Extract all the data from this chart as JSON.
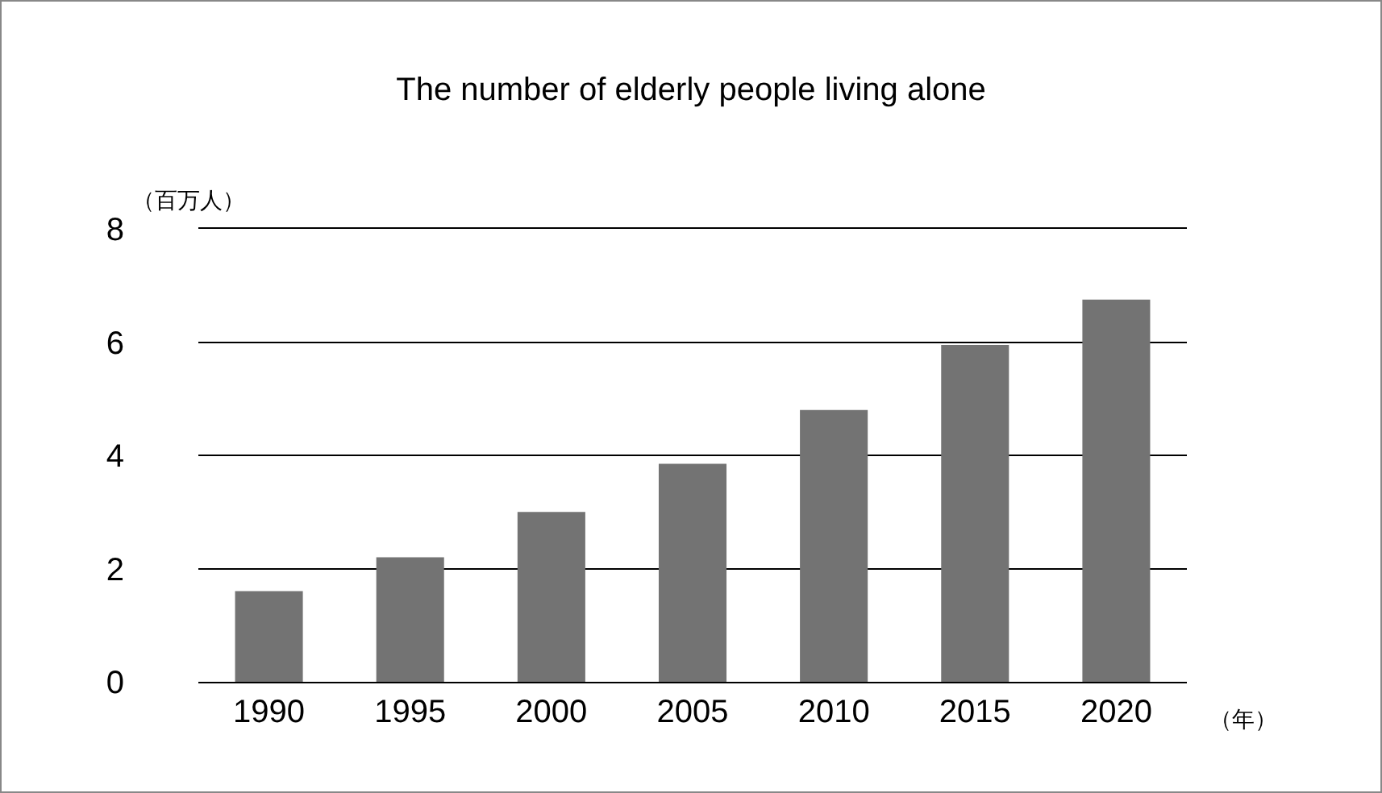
{
  "chart_data": {
    "type": "bar",
    "title": "The number of elderly people living alone",
    "ylabel": "（百万人）",
    "xlabel": "（年）",
    "categories": [
      "1990",
      "1995",
      "2000",
      "2005",
      "2010",
      "2015",
      "2020"
    ],
    "values": [
      1.6,
      2.2,
      3.0,
      3.85,
      4.8,
      5.95,
      6.75
    ],
    "color": "#737373",
    "ylim": [
      0,
      8
    ],
    "yticks": [
      0,
      2,
      4,
      6,
      8
    ],
    "grid": "y"
  }
}
